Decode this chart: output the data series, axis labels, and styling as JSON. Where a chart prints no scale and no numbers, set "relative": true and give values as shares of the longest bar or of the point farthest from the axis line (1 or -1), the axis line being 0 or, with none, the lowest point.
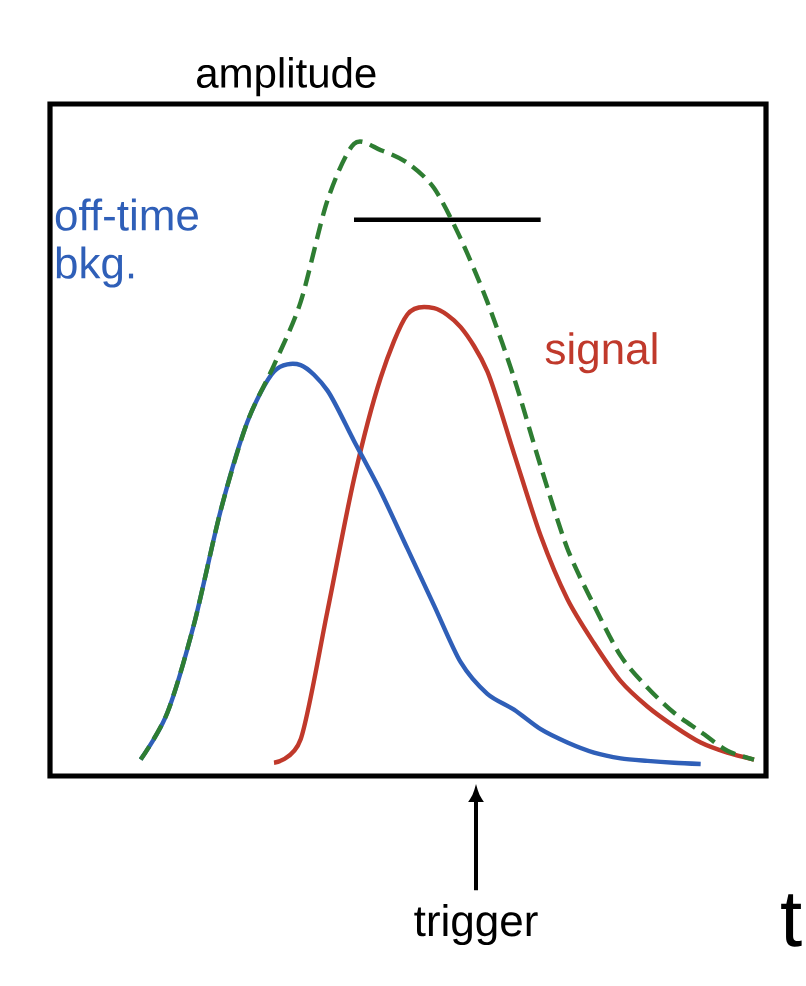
{
  "chart_data": {
    "type": "line",
    "relative": true,
    "ylabel": "amplitude",
    "xlabel": "t",
    "categories": [
      null,
      null,
      null,
      null,
      null,
      null,
      null,
      null,
      null,
      null,
      null,
      null,
      null,
      null,
      null,
      null,
      null,
      null,
      null,
      null,
      null,
      null,
      null,
      null
    ],
    "series": [
      {
        "color": "#2e7d32",
        "line_style": "dashed",
        "values": [
          0.026,
          0.1,
          0.24,
          0.42,
          0.56,
          0.65,
          0.75,
          0.91,
          1.0,
          0.99,
          0.97,
          0.93,
          0.85,
          0.75,
          0.63,
          0.49,
          0.36,
          0.27,
          0.19,
          0.14,
          0.1,
          0.07,
          0.04,
          0.026
        ]
      },
      {
        "name": "off-time bkg.",
        "color": "#2f5fb8",
        "values": [
          0.026,
          0.1,
          0.24,
          0.42,
          0.56,
          0.64,
          0.65,
          0.61,
          0.53,
          0.45,
          0.36,
          0.27,
          0.18,
          0.13,
          0.105,
          0.074,
          0.053,
          0.037,
          0.028,
          0.024,
          0.021,
          0.019,
          null,
          null
        ]
      },
      {
        "name": "signal",
        "color": "#c0392b",
        "values": [
          null,
          null,
          null,
          null,
          null,
          0.021,
          0.058,
          0.26,
          0.47,
          0.63,
          0.73,
          0.74,
          0.71,
          0.64,
          0.51,
          0.38,
          0.28,
          0.21,
          0.15,
          0.11,
          0.079,
          0.053,
          0.037,
          0.026
        ]
      },
      {
        "type": "line",
        "color": "#000000",
        "values": [
          null,
          null,
          null,
          null,
          null,
          null,
          null,
          null,
          0.88,
          0.88,
          0.88,
          0.88,
          0.88,
          0.88,
          0.88,
          0.88,
          null,
          null,
          null,
          null,
          null,
          null,
          null,
          null
        ]
      }
    ],
    "annotations": [
      "trigger"
    ]
  }
}
